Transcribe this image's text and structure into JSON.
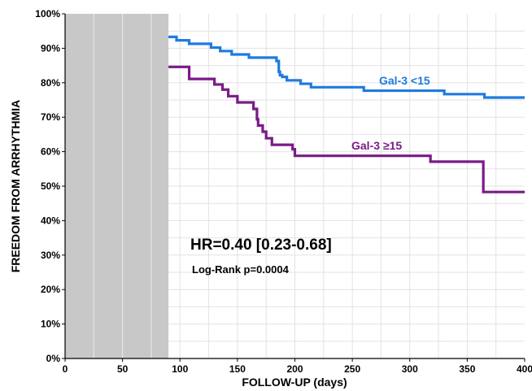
{
  "chart_data": {
    "type": "line",
    "title": "",
    "xlabel": "FOLLOW-UP (days)",
    "ylabel": "FREEDOM FROM ARRHYTHMIA",
    "xlim": [
      0,
      400
    ],
    "ylim": [
      0,
      100
    ],
    "x_ticks": [
      0,
      50,
      100,
      150,
      200,
      250,
      300,
      350,
      400
    ],
    "x_tick_labels": [
      "0",
      "50",
      "100",
      "150",
      "200",
      "250",
      "300",
      "350",
      "400"
    ],
    "y_ticks": [
      0,
      10,
      20,
      30,
      40,
      50,
      60,
      70,
      80,
      90,
      100
    ],
    "y_tick_labels": [
      "0%",
      "10%",
      "20%",
      "30%",
      "40%",
      "50%",
      "60%",
      "70%",
      "80%",
      "90%",
      "100%"
    ],
    "grid": true,
    "shaded_region": {
      "x_from": 0,
      "x_to": 90,
      "color": "#c8c8c8"
    },
    "series": [
      {
        "name": "Gal-3 <15",
        "color": "#1e7be0",
        "step": true,
        "points": [
          [
            90,
            93.3
          ],
          [
            97,
            92.3
          ],
          [
            108,
            91.3
          ],
          [
            127,
            90.2
          ],
          [
            135,
            89.2
          ],
          [
            145,
            88.2
          ],
          [
            160,
            87.3
          ],
          [
            184,
            86.3
          ],
          [
            186,
            83.2
          ],
          [
            187,
            82.2
          ],
          [
            189,
            81.7
          ],
          [
            193,
            80.7
          ],
          [
            205,
            79.7
          ],
          [
            214,
            78.7
          ],
          [
            260,
            77.7
          ],
          [
            330,
            76.7
          ],
          [
            365,
            75.7
          ],
          [
            400,
            75.7
          ]
        ]
      },
      {
        "name": "Gal-3 ≥15",
        "color": "#7a1a88",
        "step": true,
        "points": [
          [
            90,
            84.6
          ],
          [
            108,
            81.1
          ],
          [
            130,
            79.5
          ],
          [
            137,
            78.0
          ],
          [
            142,
            76.1
          ],
          [
            150,
            74.3
          ],
          [
            164,
            72.4
          ],
          [
            167,
            69.4
          ],
          [
            168,
            67.6
          ],
          [
            172,
            65.8
          ],
          [
            175,
            63.9
          ],
          [
            180,
            62.0
          ],
          [
            198,
            60.7
          ],
          [
            200,
            58.8
          ],
          [
            318,
            57.1
          ],
          [
            364,
            48.3
          ],
          [
            400,
            48.3
          ]
        ]
      }
    ],
    "annotations": [
      {
        "text": "HR=0.40 [0.23-0.68]"
      },
      {
        "text": "Log-Rank p=0.0004"
      }
    ]
  }
}
